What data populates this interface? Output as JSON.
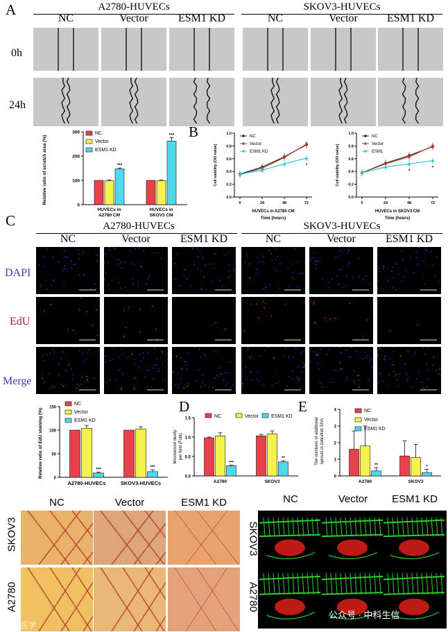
{
  "panelA": {
    "letter": "A",
    "group_left": "A2780-HUVECs",
    "group_right": "SKOV3-HUVECs",
    "columns": [
      "NC",
      "Vector",
      "ESM1 KD"
    ],
    "rows": [
      "0h",
      "24h"
    ],
    "chart": {
      "type": "bar",
      "ylabel": "Relative ratio of scratch area (%)",
      "ylim": [
        0,
        300
      ],
      "yticks": [
        0,
        100,
        200,
        300
      ],
      "categories": [
        "HUVECs in A2780 CM",
        "HUVECs in SKOV3 CM"
      ],
      "cat_lines": [
        [
          "HUVECs in",
          "A2780 CM"
        ],
        [
          "HUVECs in",
          "SKOV3 CM"
        ]
      ],
      "series": [
        {
          "name": "NC",
          "color": "#e8414b",
          "values": [
            100,
            100
          ],
          "errors": [
            0,
            0
          ]
        },
        {
          "name": "Vector",
          "color": "#f5f24c",
          "values": [
            98,
            99
          ],
          "errors": [
            4,
            3
          ]
        },
        {
          "name": "ESM1 KD",
          "color": "#4fd8ea",
          "values": [
            147,
            262
          ],
          "errors": [
            4,
            14
          ]
        }
      ],
      "annotations": [
        "***",
        "***"
      ]
    }
  },
  "panelB": {
    "letter": "B",
    "charts": [
      {
        "type": "line",
        "ylabel": "Cell viability (OD value)",
        "xlabel_lines": [
          "HUVECs in A2780 CM",
          "Time (hours)"
        ],
        "x": [
          0,
          24,
          48,
          72
        ],
        "ylim": [
          0,
          1.0
        ],
        "yticks": [
          "0.0",
          "0.2",
          "0.4",
          "0.6",
          "0.8",
          "1.0"
        ],
        "series": [
          {
            "name": "NC",
            "color": "#222222",
            "values": [
              0.36,
              0.47,
              0.63,
              0.82
            ]
          },
          {
            "name": "Vector",
            "color": "#c23b33",
            "values": [
              0.35,
              0.45,
              0.62,
              0.83
            ]
          },
          {
            "name": "ESM1 KD",
            "color": "#2ec7d4",
            "values": [
              0.36,
              0.42,
              0.52,
              0.61
            ]
          }
        ],
        "annotations": [
          "*"
        ]
      },
      {
        "type": "line",
        "ylabel": "Cell viability (OD value)",
        "xlabel_lines": [
          "HUVECs in SKOV3 CM",
          "Time (hours)"
        ],
        "x": [
          0,
          24,
          48,
          72
        ],
        "ylim": [
          0,
          1.0
        ],
        "yticks": [
          "0.0",
          "0.2",
          "0.4",
          "0.6",
          "0.8",
          "1.0"
        ],
        "series": [
          {
            "name": "NC",
            "color": "#222222",
            "values": [
              0.38,
              0.53,
              0.65,
              0.79
            ]
          },
          {
            "name": "Vector",
            "color": "#c23b33",
            "values": [
              0.38,
              0.52,
              0.63,
              0.8
            ]
          },
          {
            "name": "ESM1",
            "color": "#2ec7d4",
            "values": [
              0.38,
              0.47,
              0.52,
              0.57
            ]
          }
        ],
        "annotations": [
          "*",
          "*"
        ]
      }
    ]
  },
  "panelC": {
    "letter": "C",
    "group_left": "A2780-HUVECs",
    "group_right": "SKOV3-HUVECs",
    "columns": [
      "NC",
      "Vector",
      "ESM1 KD"
    ],
    "rows": [
      "DAPI",
      "EdU",
      "Merge"
    ],
    "row_colors": [
      "#3a3aa8",
      "#b0143c",
      "#3a3aa8"
    ],
    "chart": {
      "type": "bar",
      "ylabel": "Relative ratio of EdU staining (%)",
      "ylim": [
        0,
        150
      ],
      "yticks": [
        0,
        50,
        100,
        150
      ],
      "categories": [
        "A2780-HUVECs",
        "SKOV3-HUVECs"
      ],
      "series": [
        {
          "name": "NC",
          "color": "#e8414b",
          "values": [
            100,
            100
          ],
          "errors": [
            0,
            0
          ]
        },
        {
          "name": "Vector",
          "color": "#f5f24c",
          "values": [
            104,
            102
          ],
          "errors": [
            6,
            5
          ]
        },
        {
          "name": "ESM1 KD",
          "color": "#4fd8ea",
          "values": [
            9,
            12
          ],
          "errors": [
            2,
            4
          ]
        }
      ],
      "annotations": [
        "***",
        "***"
      ]
    }
  },
  "panelD": {
    "letter": "D",
    "chart": {
      "type": "bar",
      "ylabel_lines": [
        "Microvessel desity",
        "per field (Fold)"
      ],
      "ylim": [
        0,
        1.5
      ],
      "yticks": [
        "0.0",
        "0.5",
        "1.0",
        "1.5"
      ],
      "categories": [
        "A2780",
        "SKOV3"
      ],
      "series": [
        {
          "name": "NC",
          "color": "#e8414b",
          "values": [
            0.98,
            1.03
          ],
          "errors": [
            0.02,
            0.04
          ]
        },
        {
          "name": "Vector",
          "color": "#f5f24c",
          "values": [
            1.03,
            1.08
          ],
          "errors": [
            0.08,
            0.08
          ]
        },
        {
          "name": "ESM1 KD",
          "color": "#4fd8ea",
          "values": [
            0.26,
            0.36
          ],
          "errors": [
            0.02,
            0.03
          ]
        }
      ],
      "annotations": [
        "***",
        "**"
      ]
    }
  },
  "panelE": {
    "letter": "E",
    "chart": {
      "type": "bar",
      "ylabel_lines": [
        "The numbers of additional",
        "sprouts in zebrafish SIVs"
      ],
      "ylim": [
        0,
        4
      ],
      "yticks": [
        0,
        1,
        2,
        3,
        4
      ],
      "categories": [
        "A2780",
        "SKOV3"
      ],
      "series": [
        {
          "name": "NC",
          "color": "#e8414b",
          "values": [
            1.6,
            1.2
          ],
          "errors": [
            1.1,
            0.9
          ]
        },
        {
          "name": "Vector",
          "color": "#f5f24c",
          "values": [
            1.8,
            1.1
          ],
          "errors": [
            1.2,
            0.8
          ]
        },
        {
          "name": "ESM1 KD",
          "color": "#4fd8ea",
          "values": [
            0.3,
            0.2
          ],
          "errors": [
            0.2,
            0.2
          ]
        }
      ],
      "annotations": [
        "**",
        "*"
      ]
    }
  },
  "cam": {
    "columns": [
      "NC",
      "Vector",
      "ESM1 KD"
    ],
    "rows": [
      "SKOV3",
      "A2780"
    ]
  },
  "zebrafish": {
    "columns": [
      "NC",
      "Vector",
      "ESM1 KD"
    ],
    "rows": [
      "SKOV3",
      "A2780"
    ]
  },
  "watermark_left": "大数医学",
  "watermark_right": "公众号 · 中科生信"
}
